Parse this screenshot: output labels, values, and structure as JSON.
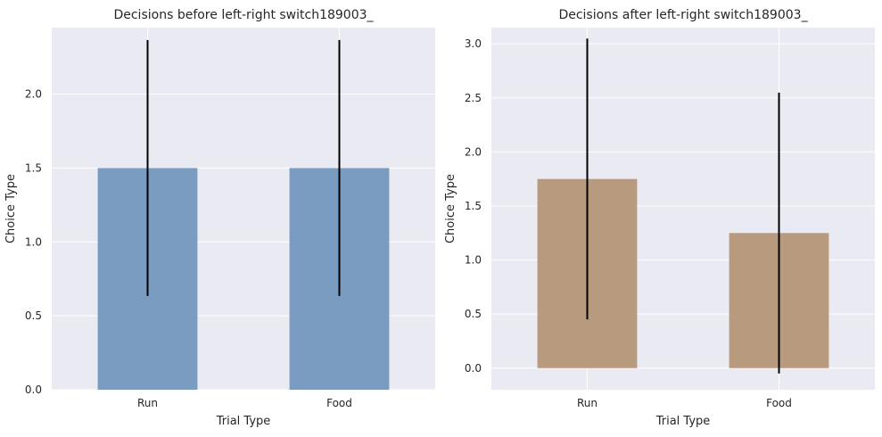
{
  "chart_data": [
    {
      "type": "bar",
      "title": "Decisions before left-right switch189003_",
      "xlabel": "Trial Type",
      "ylabel": "Choice Type",
      "categories": [
        "Run",
        "Food"
      ],
      "values": [
        1.5,
        1.5
      ],
      "error": [
        0.866,
        0.866
      ],
      "ylim": [
        0,
        2.45
      ],
      "yticks": [
        "0.0",
        "0.5",
        "1.0",
        "1.5",
        "2.0"
      ],
      "bar_color": "#7a9cc0",
      "grid": true
    },
    {
      "type": "bar",
      "title": "Decisions after left-right switch189003_",
      "xlabel": "Trial Type",
      "ylabel": "Choice Type",
      "categories": [
        "Run",
        "Food"
      ],
      "values": [
        1.75,
        1.25
      ],
      "error": [
        1.299,
        1.299
      ],
      "ylim": [
        -0.2,
        3.15
      ],
      "yticks": [
        "0.0",
        "0.5",
        "1.0",
        "1.5",
        "2.0",
        "2.5",
        "3.0"
      ],
      "bar_color": "#b89a7e",
      "grid": true
    }
  ]
}
